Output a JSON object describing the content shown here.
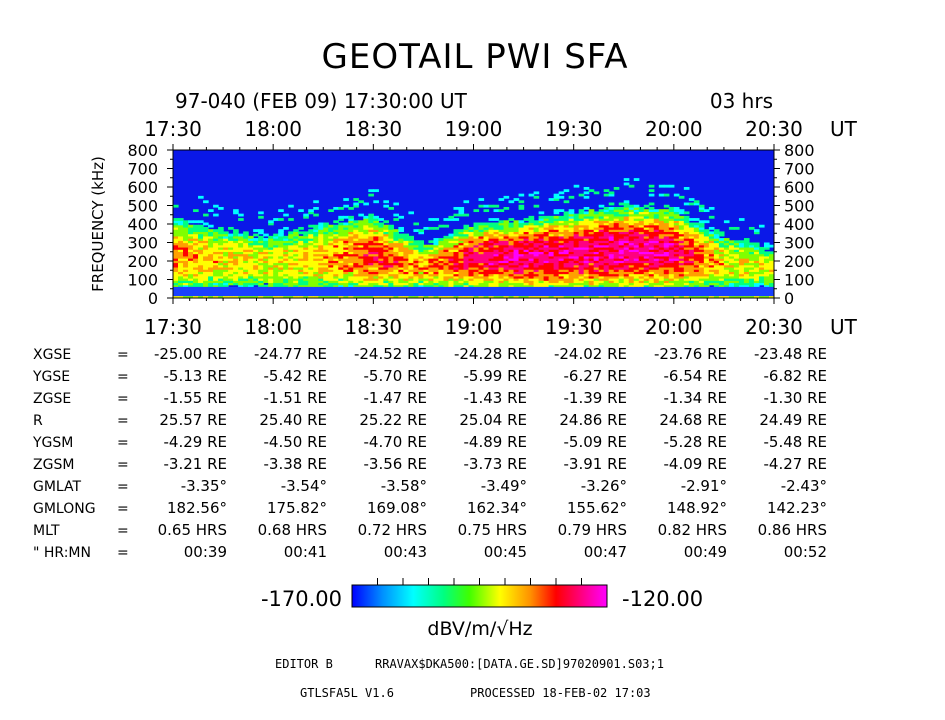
{
  "title": "GEOTAIL  PWI  SFA",
  "header": {
    "date_time": "97-040  (FEB 09)  17:30:00  UT",
    "duration": "03  hrs"
  },
  "chart_data": {
    "type": "heatmap",
    "xlabel_unit": "UT",
    "ylabel": "FREQUENCY (kHz)",
    "x_ticks": [
      "17:30",
      "18:00",
      "18:30",
      "19:00",
      "19:30",
      "20:00",
      "20:30"
    ],
    "y_ticks": [
      0,
      100,
      200,
      300,
      400,
      500,
      600,
      700,
      800
    ],
    "ylim": [
      0,
      800
    ],
    "xlim_minutes_after_1730": [
      0,
      180
    ],
    "colorbar": {
      "min": -170.0,
      "max": -120.0,
      "min_label": "-170.00",
      "max_label": "-120.00",
      "unit": "dBV/m/√Hz"
    },
    "intensity_profile": {
      "description_minutes": [
        0,
        15,
        30,
        45,
        60,
        75,
        90,
        105,
        120,
        135,
        150,
        165,
        180
      ],
      "band_top_kHz": [
        480,
        420,
        390,
        450,
        500,
        320,
        450,
        470,
        520,
        560,
        540,
        380,
        300
      ],
      "peak_level_dB": [
        -135,
        -140,
        -142,
        -138,
        -130,
        -138,
        -128,
        -125,
        -126,
        -124,
        -127,
        -140,
        -145
      ]
    }
  },
  "orbit": {
    "rows": [
      {
        "label": "XGSE",
        "values": [
          "-25.00 RE",
          "-24.77 RE",
          "-24.52 RE",
          "-24.28 RE",
          "-24.02 RE",
          "-23.76 RE",
          "-23.48 RE"
        ]
      },
      {
        "label": "YGSE",
        "values": [
          "-5.13 RE",
          "-5.42 RE",
          "-5.70 RE",
          "-5.99 RE",
          "-6.27 RE",
          "-6.54 RE",
          "-6.82 RE"
        ]
      },
      {
        "label": "ZGSE",
        "values": [
          "-1.55 RE",
          "-1.51 RE",
          "-1.47 RE",
          "-1.43 RE",
          "-1.39 RE",
          "-1.34 RE",
          "-1.30 RE"
        ]
      },
      {
        "label": "R",
        "values": [
          "25.57 RE",
          "25.40 RE",
          "25.22 RE",
          "25.04 RE",
          "24.86 RE",
          "24.68 RE",
          "24.49 RE"
        ]
      },
      {
        "label": "YGSM",
        "values": [
          "-4.29 RE",
          "-4.50 RE",
          "-4.70 RE",
          "-4.89 RE",
          "-5.09 RE",
          "-5.28 RE",
          "-5.48 RE"
        ]
      },
      {
        "label": "ZGSM",
        "values": [
          "-3.21 RE",
          "-3.38 RE",
          "-3.56 RE",
          "-3.73 RE",
          "-3.91 RE",
          "-4.09 RE",
          "-4.27 RE"
        ]
      },
      {
        "label": "GMLAT",
        "values": [
          "-3.35°",
          "-3.54°",
          "-3.58°",
          "-3.49°",
          "-3.26°",
          "-2.91°",
          "-2.43°"
        ]
      },
      {
        "label": "GMLONG",
        "values": [
          "182.56°",
          "175.82°",
          "169.08°",
          "162.34°",
          "155.62°",
          "148.92°",
          "142.23°"
        ]
      },
      {
        "label": "MLT",
        "values": [
          "0.65 HRS",
          "0.68 HRS",
          "0.72 HRS",
          "0.75 HRS",
          "0.79 HRS",
          "0.82 HRS",
          "0.86 HRS"
        ]
      },
      {
        "label": "\"  HR:MN",
        "values": [
          "00:39",
          "00:41",
          "00:43",
          "00:45",
          "00:47",
          "00:49",
          "00:52"
        ]
      }
    ]
  },
  "footer": {
    "editor_label": "EDITOR B",
    "path": "RRAVAX$DKA500:[DATA.GE.SD]97020901.S03;1",
    "program": "GTLSFA5L V1.6",
    "processed": "PROCESSED 18-FEB-02  17:03"
  },
  "colors": {
    "background": "#ffffff",
    "ink": "#000000",
    "colormap": [
      "#0000ff",
      "#00a0ff",
      "#00ffff",
      "#00ff80",
      "#80ff00",
      "#ffff00",
      "#ffa000",
      "#ff0000",
      "#ff0080",
      "#ff00ff"
    ]
  }
}
